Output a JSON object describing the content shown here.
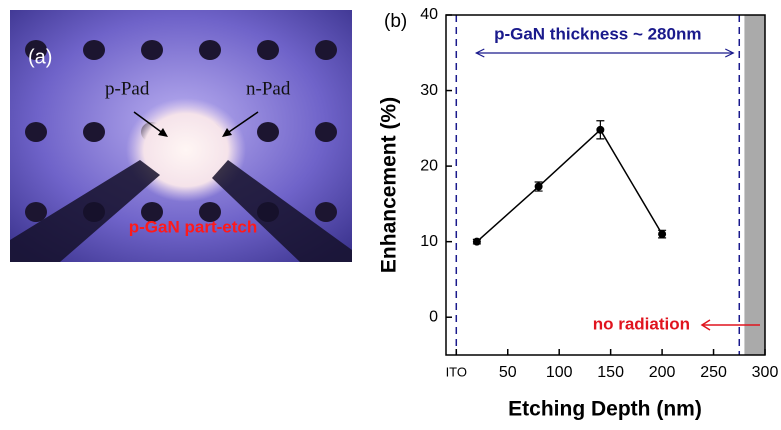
{
  "panel_a": {
    "label": "(a)",
    "annotations": [
      "p-Pad",
      "n-Pad",
      "p-GaN part-etch"
    ]
  },
  "chart_data": {
    "type": "line",
    "panel_label": "(b)",
    "x_label": "Etching Depth (nm)",
    "y_label": "Enhancement (%)",
    "x": [
      20,
      80,
      140,
      200
    ],
    "series": [
      {
        "color": "#000000",
        "values": [
          10,
          17.3,
          24.8,
          11
        ],
        "errors": [
          0.3,
          0.6,
          1.2,
          0.5
        ]
      }
    ],
    "xlim": [
      -10,
      300
    ],
    "ylim": [
      -5,
      40
    ],
    "xticks": [
      {
        "value": 0,
        "label": "ITO"
      },
      50,
      100,
      150,
      200,
      250,
      300
    ],
    "yticks": [
      0,
      10,
      20,
      30,
      40
    ],
    "dashed_lines": [
      0,
      275
    ],
    "shaded_region": [
      280,
      300
    ],
    "annotations": [
      {
        "text": "p-GaN thickness ~ 280nm",
        "color": "#1a1a8c"
      },
      {
        "text": "no radiation",
        "color": "#e0141e"
      }
    ]
  }
}
